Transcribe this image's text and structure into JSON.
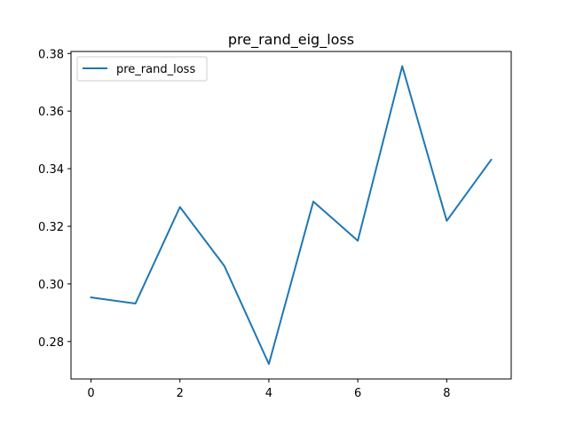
{
  "chart_data": {
    "type": "line",
    "title": "pre_rand_eig_loss",
    "xlabel": "",
    "ylabel": "",
    "x": [
      0,
      1,
      2,
      3,
      4,
      5,
      6,
      7,
      8,
      9
    ],
    "series": [
      {
        "name": "pre_rand_loss",
        "values": [
          0.2953,
          0.2932,
          0.3267,
          0.3062,
          0.2722,
          0.3286,
          0.315,
          0.3756,
          0.3219,
          0.3431
        ]
      }
    ],
    "xlim": [
      -0.45,
      9.45
    ],
    "ylim": [
      0.267,
      0.3807
    ],
    "xticks": [
      0,
      2,
      4,
      6,
      8
    ],
    "xtick_labels": [
      "0",
      "2",
      "4",
      "6",
      "8"
    ],
    "yticks": [
      0.28,
      0.3,
      0.32,
      0.34,
      0.36,
      0.38
    ],
    "ytick_labels": [
      "0.28",
      "0.30",
      "0.32",
      "0.34",
      "0.36",
      "0.38"
    ],
    "grid": false,
    "legend_position": "top-left",
    "colors": {
      "series": "#1f77b4",
      "axes": "#000000",
      "legend_border": "#cccccc"
    }
  }
}
